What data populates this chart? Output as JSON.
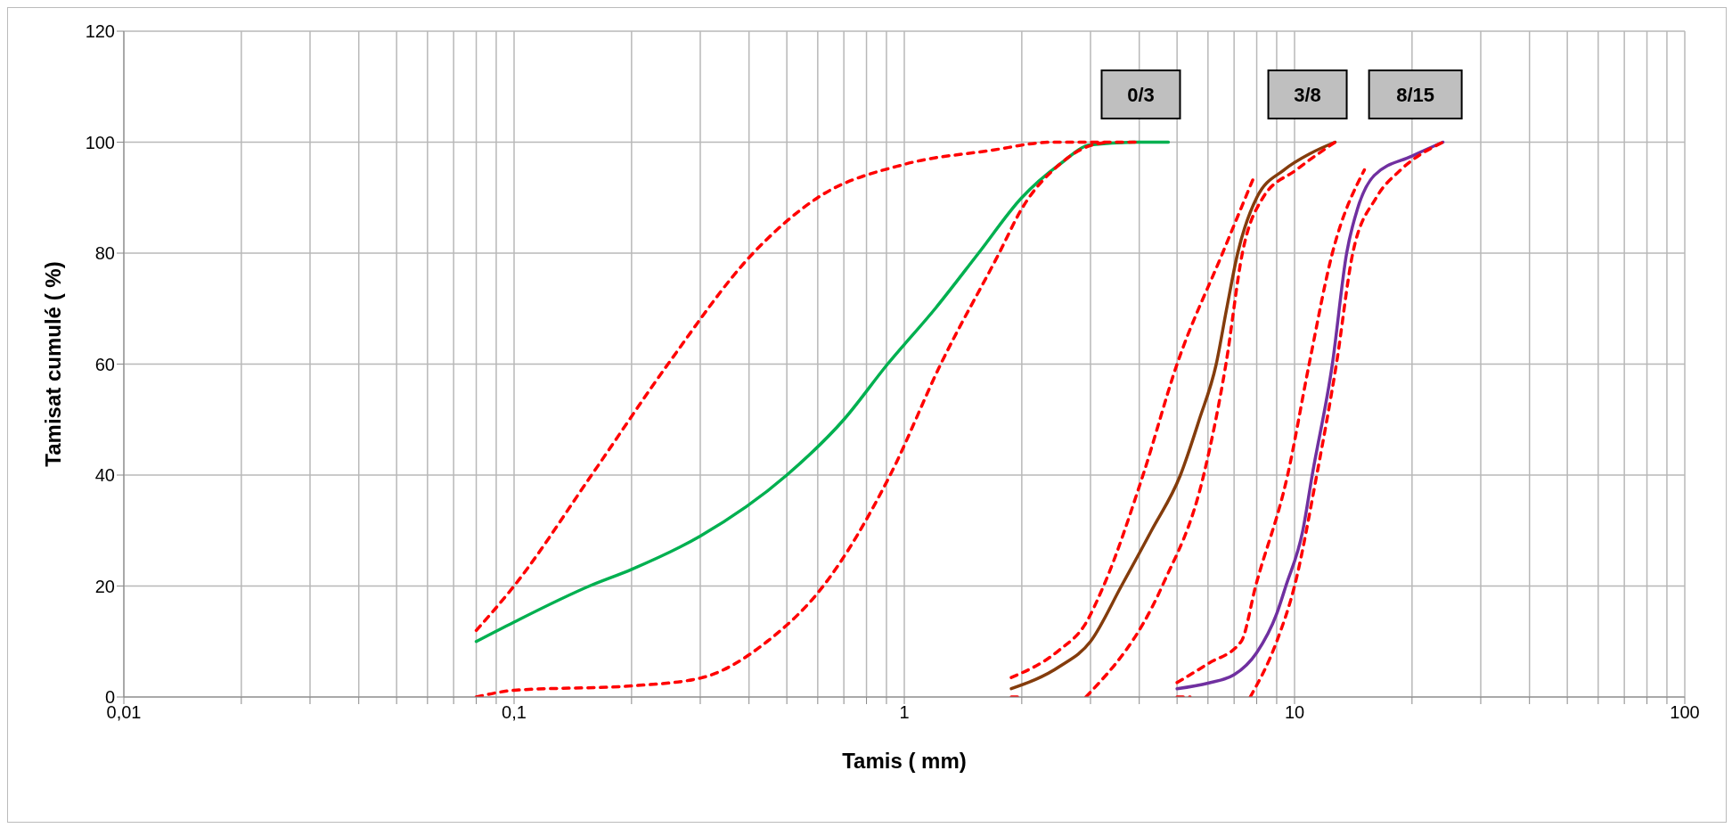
{
  "chart_data": {
    "type": "line",
    "xlabel": "Tamis ( mm)",
    "ylabel": "Tamisat cumulé ( %)",
    "log": "x",
    "grid": true,
    "xlim": [
      0.01,
      100
    ],
    "xticks": [
      {
        "value": 0.01,
        "label": "0,01"
      },
      {
        "value": 0.02,
        "label": null
      },
      {
        "value": 0.03,
        "label": null
      },
      {
        "value": 0.04,
        "label": null
      },
      {
        "value": 0.05,
        "label": null
      },
      {
        "value": 0.06,
        "label": null
      },
      {
        "value": 0.07,
        "label": null
      },
      {
        "value": 0.08,
        "label": null
      },
      {
        "value": 0.09,
        "label": null
      },
      {
        "value": 0.1,
        "label": "0,1"
      },
      {
        "value": 0.2,
        "label": null
      },
      {
        "value": 0.3,
        "label": null
      },
      {
        "value": 0.4,
        "label": null
      },
      {
        "value": 0.5,
        "label": null
      },
      {
        "value": 0.6,
        "label": null
      },
      {
        "value": 0.7,
        "label": null
      },
      {
        "value": 0.8,
        "label": null
      },
      {
        "value": 0.9,
        "label": null
      },
      1,
      {
        "value": 2,
        "label": null
      },
      {
        "value": 3,
        "label": null
      },
      {
        "value": 4,
        "label": null
      },
      {
        "value": 5,
        "label": null
      },
      {
        "value": 6,
        "label": null
      },
      {
        "value": 7,
        "label": null
      },
      {
        "value": 8,
        "label": null
      },
      {
        "value": 9,
        "label": null
      },
      10,
      {
        "value": 20,
        "label": null
      },
      {
        "value": 30,
        "label": null
      },
      {
        "value": 40,
        "label": null
      },
      {
        "value": 50,
        "label": null
      },
      {
        "value": 60,
        "label": null
      },
      {
        "value": 70,
        "label": null
      },
      {
        "value": 80,
        "label": null
      },
      {
        "value": 90,
        "label": null
      },
      100
    ],
    "ylim": [
      0,
      120
    ],
    "yticks": [
      0,
      20,
      40,
      60,
      80,
      100,
      120
    ],
    "series": [
      {
        "color": "#ff0000",
        "line_style": "dashed",
        "x": [
          0.08,
          0.1,
          0.158,
          0.248,
          0.41,
          0.6,
          1,
          1.66,
          2.4,
          4
        ],
        "values": [
          12,
          20,
          40,
          60,
          80,
          90,
          96,
          98.5,
          100,
          100
        ]
      },
      {
        "color": "#ff0000",
        "line_style": "dashed",
        "x": [
          0.08,
          0.1,
          0.2,
          0.3,
          0.445,
          0.62,
          0.92,
          1.24,
          1.75,
          2,
          2.5,
          2.9,
          3.3
        ],
        "values": [
          0,
          1.2,
          2,
          3.4,
          10,
          20,
          40,
          60,
          80,
          88,
          96,
          99,
          100
        ]
      },
      {
        "color": "#00b050",
        "line_style": "solid",
        "x": [
          0.08,
          0.1,
          0.156,
          0.2,
          0.3,
          0.5,
          0.7,
          0.906,
          1.2,
          1.55,
          2,
          2.5,
          3,
          4,
          4.75
        ],
        "values": [
          10,
          13.5,
          20,
          23,
          29,
          40,
          50,
          60,
          70,
          80,
          90,
          96,
          99.5,
          100,
          100
        ]
      },
      {
        "color": "#ff0000",
        "line_style": "dashed",
        "x": [
          1.88,
          2.5,
          2.9,
          3.24,
          4.09,
          5,
          6.54,
          7.9
        ],
        "values": [
          3.5,
          8.5,
          13,
          20,
          40,
          60,
          80,
          94
        ]
      },
      {
        "color": "#ff0000",
        "line_style": "dashed",
        "x": [
          1.88,
          2,
          2.4,
          2.92,
          4.58,
          5.85,
          6.67,
          7.35,
          8.3,
          10.1,
          12.7
        ],
        "values": [
          0,
          0,
          null,
          0,
          20,
          40,
          60,
          80,
          90,
          95,
          100
        ]
      },
      {
        "color": "#843c0c",
        "line_style": "solid",
        "x": [
          1.88,
          2.5,
          3,
          3.6,
          4.3,
          5.1,
          5.7,
          6.3,
          6.7,
          7.15,
          8,
          9.4,
          11,
          12.7
        ],
        "values": [
          1.5,
          5.5,
          10,
          20,
          30,
          40,
          50,
          60,
          70,
          80,
          90,
          95,
          98,
          100
        ]
      },
      {
        "color": "#ff0000",
        "line_style": "dashed",
        "x": [
          5,
          6,
          7.3,
          7.95,
          9.6,
          10.9,
          12.5,
          15.1
        ],
        "values": [
          2.6,
          6,
          10,
          20,
          40,
          60,
          80,
          95
        ]
      },
      {
        "color": "#ff0000",
        "line_style": "dashed",
        "x": [
          5,
          5.4,
          6.5,
          7.7,
          9,
          10,
          11.4,
          12.8,
          14.1,
          16.2,
          18.7,
          24
        ],
        "values": [
          0,
          0,
          null,
          0,
          10,
          20,
          40,
          60,
          80,
          90,
          95,
          100
        ]
      },
      {
        "color": "#7030a0",
        "line_style": "solid",
        "x": [
          5,
          6,
          7,
          8,
          9,
          9.5,
          10.5,
          11.1,
          12.5,
          13.6,
          14.5,
          16,
          20,
          24
        ],
        "values": [
          1.5,
          2.5,
          4,
          8,
          15,
          20,
          30,
          40,
          60,
          80,
          88,
          94,
          97.5,
          100
        ]
      }
    ],
    "annotations": [
      "0/3",
      "3/8",
      "8/15"
    ]
  }
}
